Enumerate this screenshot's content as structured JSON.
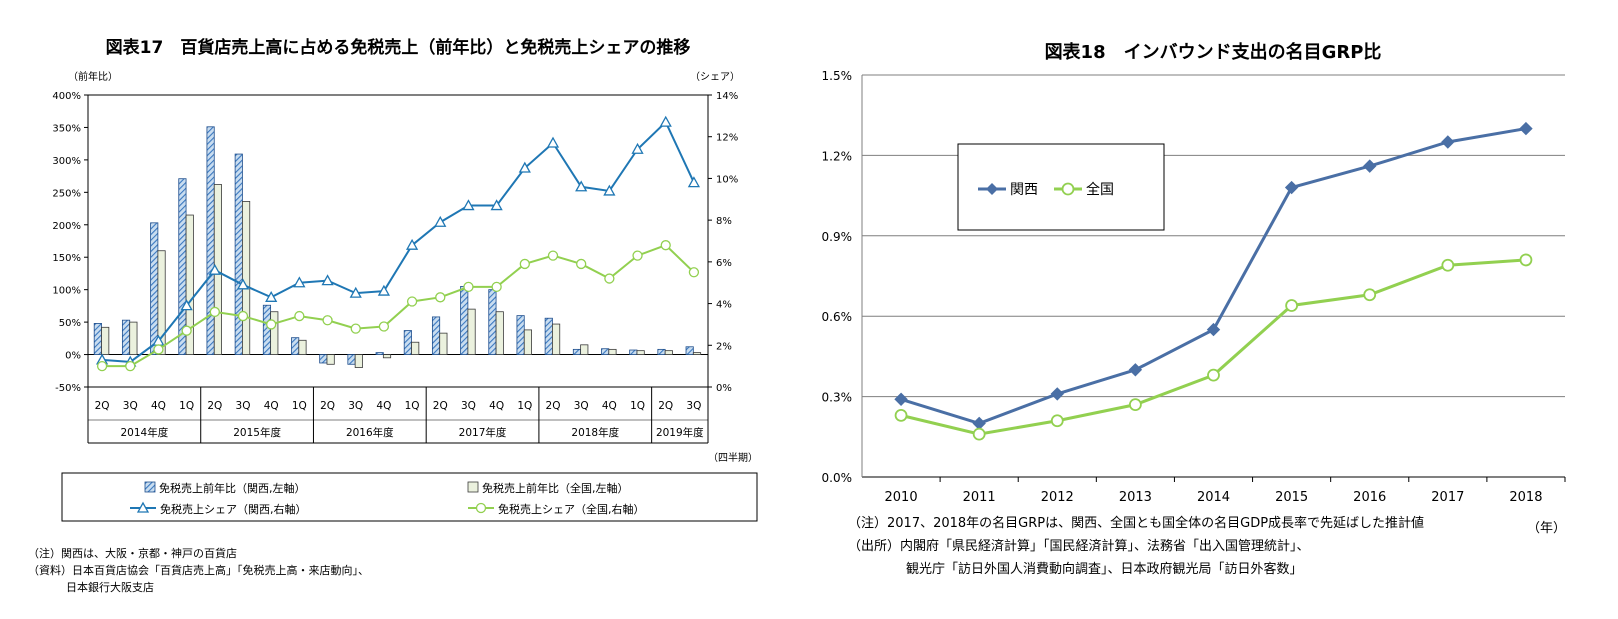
{
  "chart_data": [
    {
      "type": "bar+line",
      "title": "図表17　百貨店売上高に占める免税売上（前年比）と免税売上シェアの推移",
      "ylabel_left": "（前年比）",
      "ylabel_right": "（シェア）",
      "xlabel_unit": "（四半期）",
      "ylim_left": [
        -50,
        400
      ],
      "ylim_right": [
        0,
        14
      ],
      "yticks_left": [
        "-50%",
        "0%",
        "50%",
        "100%",
        "150%",
        "200%",
        "250%",
        "300%",
        "350%",
        "400%"
      ],
      "yticks_right": [
        "0%",
        "2%",
        "4%",
        "6%",
        "8%",
        "10%",
        "12%",
        "14%"
      ],
      "quarters": [
        "2Q",
        "3Q",
        "4Q",
        "1Q",
        "2Q",
        "3Q",
        "4Q",
        "1Q",
        "2Q",
        "3Q",
        "4Q",
        "1Q",
        "2Q",
        "3Q",
        "4Q",
        "1Q",
        "2Q",
        "3Q",
        "4Q",
        "1Q",
        "2Q",
        "3Q"
      ],
      "fiscal_years": [
        {
          "label": "2014年度",
          "count": 4
        },
        {
          "label": "2015年度",
          "count": 4
        },
        {
          "label": "2016年度",
          "count": 4
        },
        {
          "label": "2017年度",
          "count": 4
        },
        {
          "label": "2018年度",
          "count": 4
        },
        {
          "label": "2019年度",
          "count": 2
        }
      ],
      "series": [
        {
          "name": "免税売上前年比（関西,左軸）",
          "kind": "bar",
          "axis": "left",
          "color": "#5b9bd5",
          "values": [
            48,
            53,
            203,
            271,
            351,
            309,
            76,
            26,
            -13,
            -15,
            3,
            37,
            58,
            105,
            100,
            60,
            56,
            8,
            9,
            7,
            8,
            12
          ]
        },
        {
          "name": "免税売上前年比（全国,左軸）",
          "kind": "bar",
          "axis": "left",
          "color": "#ebf1de",
          "values": [
            42,
            50,
            160,
            215,
            262,
            236,
            66,
            22,
            -15,
            -20,
            -5,
            19,
            33,
            70,
            66,
            38,
            47,
            15,
            8,
            6,
            6,
            3
          ]
        },
        {
          "name": "免税売上シェア（関西,右軸）",
          "kind": "line",
          "axis": "right",
          "color": "#1f77b4",
          "values": [
            1.3,
            1.2,
            2.2,
            3.9,
            5.6,
            4.9,
            4.3,
            5.0,
            5.1,
            4.5,
            4.6,
            6.8,
            7.9,
            8.7,
            8.7,
            10.5,
            11.7,
            9.6,
            9.4,
            11.4,
            12.7,
            9.8
          ]
        },
        {
          "name": "免税売上シェア（全国,右軸）",
          "kind": "line",
          "axis": "right",
          "color": "#92d050",
          "values": [
            1.0,
            1.0,
            1.8,
            2.7,
            3.6,
            3.4,
            3.0,
            3.4,
            3.2,
            2.8,
            2.9,
            4.1,
            4.3,
            4.8,
            4.8,
            5.9,
            6.3,
            5.9,
            5.2,
            6.3,
            6.8,
            5.5
          ]
        }
      ],
      "legend": [
        "免税売上前年比（関西,左軸）",
        "免税売上前年比（全国,左軸）",
        "免税売上シェア（関西,右軸）",
        "免税売上シェア（全国,右軸）"
      ],
      "notes": [
        "（注）関西は、大阪・京都・神戸の百貨店",
        "（資料）日本百貨店協会「百貨店売上高」「免税売上高・来店動向」、",
        "日本銀行大阪支店"
      ]
    },
    {
      "type": "line",
      "title": "図表18　インバウンド支出の名目GRP比",
      "xlabel_unit": "（年）",
      "ylim": [
        0,
        1.5
      ],
      "yticks": [
        "0.0%",
        "0.3%",
        "0.6%",
        "0.9%",
        "1.2%",
        "1.5%"
      ],
      "x": [
        "2010",
        "2011",
        "2012",
        "2013",
        "2014",
        "2015",
        "2016",
        "2017",
        "2018"
      ],
      "series": [
        {
          "name": "関西",
          "color": "#4a6fa5",
          "marker": "diamond",
          "values": [
            0.29,
            0.2,
            0.31,
            0.4,
            0.55,
            1.08,
            1.16,
            1.25,
            1.3
          ]
        },
        {
          "name": "全国",
          "color": "#92d050",
          "marker": "circle",
          "values": [
            0.23,
            0.16,
            0.21,
            0.27,
            0.38,
            0.64,
            0.68,
            0.79,
            0.81
          ]
        }
      ],
      "legend": [
        "関西",
        "全国"
      ],
      "notes": [
        "（注）2017、2018年の名目GRPは、関西、全国とも国全体の名目GDP成長率で先延ばした推計値",
        "（出所）内閣府「県民経済計算」「国民経済計算」、法務省「出入国管理統計」、",
        "観光庁「訪日外国人消費動向調査」、日本政府観光局「訪日外客数」"
      ]
    }
  ]
}
